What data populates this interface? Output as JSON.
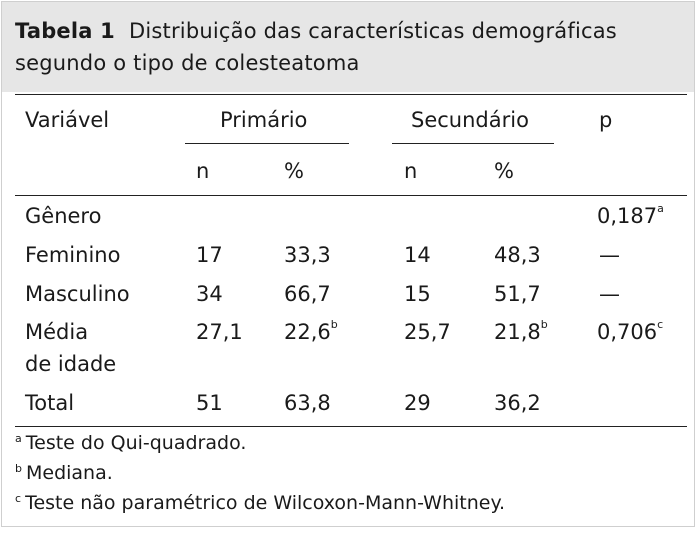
{
  "caption": {
    "label": "Tabela 1",
    "line1": "Distribuição das características demográficas",
    "line2": "segundo o tipo de colesteatoma"
  },
  "header": {
    "variable": "Variável",
    "group1": "Primário",
    "group2": "Secundário",
    "p": "p",
    "n": "n",
    "pct": "%"
  },
  "rows": [
    {
      "label": "Gênero",
      "n1": "",
      "pct1": "",
      "n2": "",
      "pct2": "",
      "p": "0,187",
      "p_sup": "a"
    },
    {
      "label": "Feminino",
      "n1": "17",
      "pct1": "33,3",
      "n2": "14",
      "pct2": "48,3",
      "p": "—",
      "p_sup": ""
    },
    {
      "label": "Masculino",
      "n1": "34",
      "pct1": "66,7",
      "n2": "15",
      "pct2": "51,7",
      "p": "—",
      "p_sup": ""
    },
    {
      "label_line1": "Média",
      "label_line2": "de idade",
      "n1": "27,1",
      "pct1": "22,6",
      "pct1_sup": "b",
      "n2": "25,7",
      "pct2": "21,8",
      "pct2_sup": "b",
      "p": "0,706",
      "p_sup": "c"
    },
    {
      "label": "Total",
      "n1": "51",
      "pct1": "63,8",
      "n2": "29",
      "pct2": "36,2",
      "p": "",
      "p_sup": ""
    }
  ],
  "footnotes": [
    {
      "mark": "a",
      "text": "Teste do Qui-quadrado."
    },
    {
      "mark": "b",
      "text": "Mediana."
    },
    {
      "mark": "c",
      "text": "Teste não paramétrico de Wilcoxon-Mann-Whitney."
    }
  ]
}
